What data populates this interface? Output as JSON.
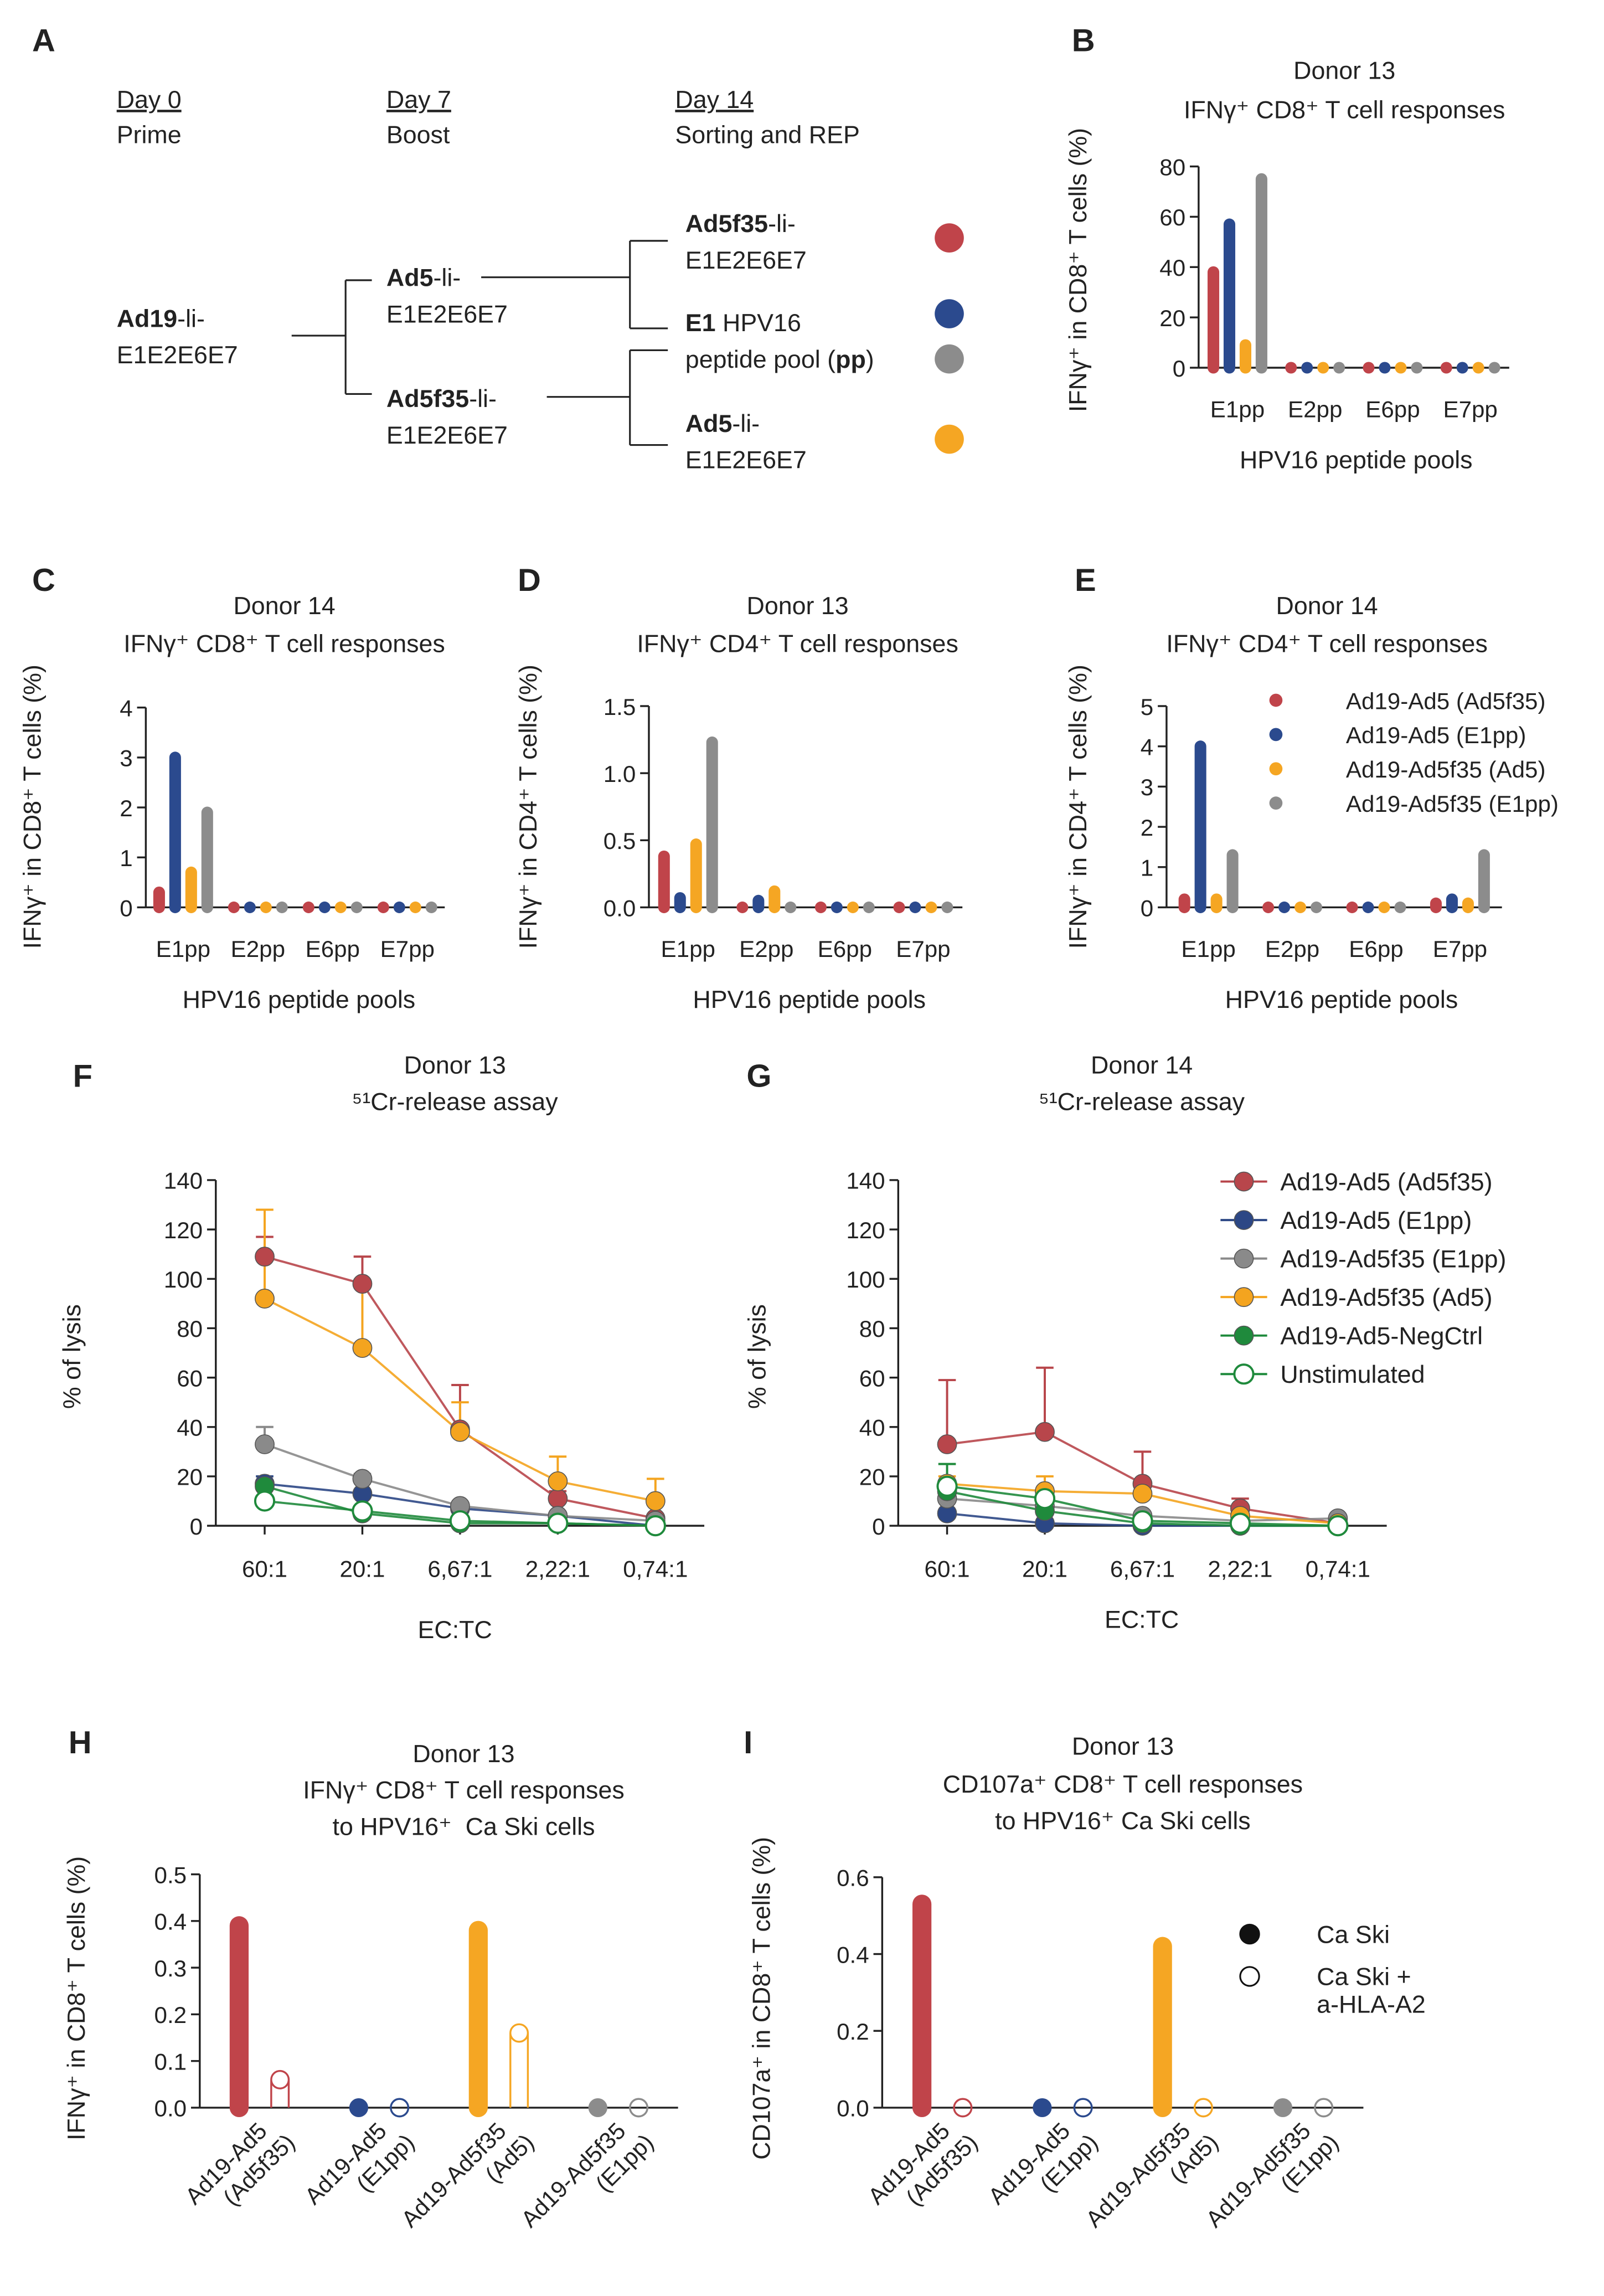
{
  "diagram": {
    "panel": "A",
    "timeline": [
      {
        "day": "Day 0",
        "step": "Prime"
      },
      {
        "day": "Day 7",
        "step": "Boost"
      },
      {
        "day": "Day 14",
        "step": "Sorting and REP"
      }
    ],
    "nodes": [
      {
        "lines": [
          [
            {
              "text": "Ad19",
              "bold": true
            },
            {
              "text": "-li-"
            }
          ],
          [
            {
              "text": "E1E2E6E7"
            }
          ]
        ]
      },
      {
        "lines": [
          [
            {
              "text": "Ad5",
              "bold": true
            },
            {
              "text": "-li-"
            }
          ],
          [
            {
              "text": "E1E2E6E7"
            }
          ]
        ]
      },
      {
        "lines": [
          [
            {
              "text": "Ad5f35",
              "bold": true
            },
            {
              "text": "-li-"
            }
          ],
          [
            {
              "text": "E1E2E6E7"
            }
          ]
        ]
      },
      {
        "lines": [
          [
            {
              "text": "Ad5f35",
              "bold": true
            },
            {
              "text": "-li-"
            }
          ],
          [
            {
              "text": "E1E2E6E7"
            }
          ]
        ]
      },
      {
        "lines": [
          [
            {
              "text": "E1",
              "bold": true
            },
            {
              "text": " HPV16"
            }
          ],
          [
            {
              "text": "peptide pool ("
            },
            {
              "text": "pp",
              "bold": true
            },
            {
              "text": ")"
            }
          ]
        ]
      },
      {
        "lines": [
          [
            {
              "text": "Ad5",
              "bold": true
            },
            {
              "text": "-li-"
            }
          ],
          [
            {
              "text": "E1E2E6E7"
            }
          ]
        ]
      }
    ]
  },
  "chart_data": [
    {
      "panel": "B",
      "type": "lollipop",
      "title": [
        "Donor 13",
        "IFNγ⁺ CD8⁺ T cell responses"
      ],
      "x_label": "HPV16 peptide pools",
      "y_label": "IFNγ⁺ in CD8⁺ T cells (%)",
      "categories": [
        "E1pp",
        "E2pp",
        "E6pp",
        "E7pp"
      ],
      "ylim": [
        0,
        80
      ],
      "yticks": [
        0,
        20,
        40,
        60,
        80
      ],
      "series": [
        {
          "color": "#c0444a",
          "values": [
            38,
            0,
            0,
            0
          ]
        },
        {
          "color": "#2b4a8e",
          "values": [
            57,
            0,
            0,
            0
          ]
        },
        {
          "color": "#f5a623",
          "values": [
            9,
            0,
            0,
            0
          ]
        },
        {
          "color": "#8c8c8c",
          "values": [
            75,
            0,
            0,
            0
          ]
        }
      ]
    },
    {
      "panel": "C",
      "type": "lollipop",
      "title": [
        "Donor 14",
        "IFNγ⁺ CD8⁺ T cell responses"
      ],
      "x_label": "HPV16 peptide pools",
      "y_label": "IFNγ⁺ in CD8⁺ T cells (%)",
      "categories": [
        "E1pp",
        "E2pp",
        "E6pp",
        "E7pp"
      ],
      "ylim": [
        0,
        4
      ],
      "yticks": [
        0,
        1,
        2,
        3,
        4
      ],
      "series": [
        {
          "color": "#c0444a",
          "values": [
            0.3,
            0,
            0,
            0
          ]
        },
        {
          "color": "#2b4a8e",
          "values": [
            3.0,
            0,
            0,
            0
          ]
        },
        {
          "color": "#f5a623",
          "values": [
            0.7,
            0,
            0,
            0
          ]
        },
        {
          "color": "#8c8c8c",
          "values": [
            1.9,
            0,
            0,
            0
          ]
        }
      ]
    },
    {
      "panel": "D",
      "type": "lollipop",
      "title": [
        "Donor 13",
        "IFNγ⁺ CD4⁺ T cell responses"
      ],
      "x_label": "HPV16 peptide pools",
      "y_label": "IFNγ⁺ in CD4⁺ T cells (%)",
      "categories": [
        "E1pp",
        "E2pp",
        "E6pp",
        "E7pp"
      ],
      "ylim": [
        0,
        1.5
      ],
      "yticks": [
        {
          "value": 0,
          "label": "0.0"
        },
        0.5,
        {
          "value": 1,
          "label": "1.0"
        },
        1.5
      ],
      "series": [
        {
          "color": "#c0444a",
          "values": [
            0.38,
            0,
            0,
            0
          ]
        },
        {
          "color": "#2b4a8e",
          "values": [
            0.07,
            0.05,
            0,
            0
          ]
        },
        {
          "color": "#f5a623",
          "values": [
            0.47,
            0.12,
            0,
            0
          ]
        },
        {
          "color": "#8c8c8c",
          "values": [
            1.23,
            0,
            0,
            0
          ]
        }
      ]
    },
    {
      "panel": "E",
      "type": "lollipop",
      "title": [
        "Donor 14",
        "IFNγ⁺ CD4⁺ T cell responses"
      ],
      "x_label": "HPV16 peptide pools",
      "y_label": "IFNγ⁺ in CD4⁺ T cells (%)",
      "categories": [
        "E1pp",
        "E2pp",
        "E6pp",
        "E7pp"
      ],
      "ylim": [
        0,
        5
      ],
      "yticks": [
        0,
        1,
        2,
        3,
        4,
        5
      ],
      "legend": "top-right",
      "series": [
        {
          "name": "Ad19-Ad5 (Ad5f35)",
          "color": "#c0444a",
          "values": [
            0.2,
            0,
            0,
            0.1
          ]
        },
        {
          "name": "Ad19-Ad5 (E1pp)",
          "color": "#2b4a8e",
          "values": [
            4.0,
            0,
            0,
            0.2
          ]
        },
        {
          "name": "Ad19-Ad5f35 (Ad5)",
          "color": "#f5a623",
          "values": [
            0.2,
            0,
            0,
            0.1
          ]
        },
        {
          "name": "Ad19-Ad5f35 (E1pp)",
          "color": "#8c8c8c",
          "values": [
            1.3,
            0,
            0,
            1.3
          ]
        }
      ]
    },
    {
      "panel": "F",
      "type": "line",
      "title": [
        "Donor 13",
        "⁵¹Cr-release assay"
      ],
      "x_label": "EC:TC",
      "y_label": "% of lysis",
      "categories": [
        "60:1",
        "20:1",
        "6,67:1",
        "2,22:1",
        "0,74:1"
      ],
      "ylim": [
        0,
        140
      ],
      "yticks": [
        0,
        20,
        40,
        60,
        80,
        100,
        120,
        140
      ],
      "series": [
        {
          "color": "#b8464b",
          "values": [
            109,
            98,
            39,
            11,
            3
          ],
          "errors": [
            8,
            11,
            18,
            3,
            null
          ]
        },
        {
          "color": "#2c4785",
          "values": [
            17,
            13,
            7,
            4,
            0
          ],
          "errors": [
            3,
            null,
            null,
            null,
            null
          ]
        },
        {
          "color": "#8a8a8a",
          "values": [
            33,
            19,
            8,
            4,
            2
          ],
          "errors": [
            7,
            2,
            1,
            null,
            null
          ]
        },
        {
          "color": "#f4a41f",
          "values": [
            92,
            72,
            38,
            18,
            10
          ],
          "errors": [
            36,
            26,
            12,
            10,
            9
          ]
        },
        {
          "color": "#1f8a3c",
          "values": [
            16,
            5,
            1,
            1,
            0
          ],
          "errors": [
            null,
            null,
            null,
            null,
            null
          ]
        },
        {
          "color": "#1f8a3c",
          "marker": "open",
          "values": [
            10,
            6,
            2,
            1,
            0
          ],
          "errors": [
            null,
            null,
            null,
            null,
            null
          ]
        }
      ]
    },
    {
      "panel": "G",
      "type": "line",
      "title": [
        "Donor 14",
        "⁵¹Cr-release assay"
      ],
      "x_label": "EC:TC",
      "y_label": "% of lysis",
      "categories": [
        "60:1",
        "20:1",
        "6,67:1",
        "2,22:1",
        "0,74:1"
      ],
      "ylim": [
        0,
        140
      ],
      "yticks": [
        0,
        20,
        40,
        60,
        80,
        100,
        120,
        140
      ],
      "legend": "top-right",
      "series": [
        {
          "name": "Ad19-Ad5 (Ad5f35)",
          "color": "#b8464b",
          "values": [
            33,
            38,
            17,
            7,
            1
          ],
          "errors": [
            26,
            26,
            13,
            4,
            null
          ]
        },
        {
          "name": "Ad19-Ad5 (E1pp)",
          "color": "#2c4785",
          "values": [
            5,
            1,
            0,
            0,
            0
          ],
          "errors": [
            null,
            null,
            null,
            null,
            null
          ]
        },
        {
          "name": "Ad19-Ad5f35 (E1pp)",
          "color": "#8a8a8a",
          "values": [
            11,
            8,
            4,
            2,
            3
          ],
          "errors": [
            2,
            null,
            null,
            null,
            null
          ]
        },
        {
          "name": "Ad19-Ad5f35 (Ad5)",
          "color": "#f4a41f",
          "values": [
            17,
            14,
            13,
            4,
            1
          ],
          "errors": [
            3,
            6,
            null,
            null,
            null
          ]
        },
        {
          "name": "Ad19-Ad5-NegCtrl",
          "color": "#1f8a3c",
          "values": [
            14,
            6,
            1,
            0,
            0
          ],
          "errors": [
            11,
            null,
            null,
            null,
            null
          ]
        },
        {
          "name": "Unstimulated",
          "color": "#1f8a3c",
          "marker": "open",
          "values": [
            16,
            11,
            2,
            1,
            0
          ],
          "errors": [
            null,
            null,
            null,
            null,
            null
          ]
        }
      ]
    },
    {
      "panel": "H",
      "type": "bar",
      "title": [
        "Donor 13",
        "IFNγ⁺ CD8⁺ T cell responses",
        "to HPV16⁺  Ca Ski cells"
      ],
      "y_label": "IFNγ⁺ in CD8⁺ T cells (%)",
      "categories": [
        [
          "Ad19-Ad5",
          "(Ad5f35)"
        ],
        [
          "Ad19-Ad5",
          "(E1pp)"
        ],
        [
          "Ad19-Ad5f35",
          "(Ad5)"
        ],
        [
          "Ad19-Ad5f35",
          "(E1pp)"
        ]
      ],
      "ylim": [
        0,
        0.5
      ],
      "yticks": [
        {
          "value": 0,
          "label": "0.0"
        },
        0.1,
        0.2,
        0.3,
        0.4,
        0.5
      ],
      "series": [
        {
          "fill": "solid",
          "colors": [
            "#c0444a",
            "#2b4a8e",
            "#f5a623",
            "#8c8c8c"
          ],
          "values": [
            0.39,
            0,
            0.38,
            0
          ]
        },
        {
          "fill": "open",
          "colors": [
            "#c0444a",
            "#2b4a8e",
            "#f5a623",
            "#8c8c8c"
          ],
          "values": [
            0.06,
            0,
            0.16,
            0
          ]
        }
      ]
    },
    {
      "panel": "I",
      "type": "bar",
      "title": [
        "Donor 13",
        "CD107a⁺ CD8⁺ T cell responses",
        "to HPV16⁺ Ca Ski cells"
      ],
      "y_label": "CD107a⁺ in CD8⁺ T cells (%)",
      "categories": [
        [
          "Ad19-Ad5",
          "(Ad5f35)"
        ],
        [
          "Ad19-Ad5",
          "(E1pp)"
        ],
        [
          "Ad19-Ad5f35",
          "(Ad5)"
        ],
        [
          "Ad19-Ad5f35",
          "(E1pp)"
        ]
      ],
      "ylim": [
        0,
        0.6
      ],
      "yticks": [
        {
          "value": 0,
          "label": "0.0"
        },
        0.2,
        0.4,
        0.6
      ],
      "legend": "top-right",
      "series": [
        {
          "name": [
            "Ca Ski"
          ],
          "fill": "solid",
          "colors": [
            "#c0444a",
            "#2b4a8e",
            "#f5a623",
            "#8c8c8c"
          ],
          "values": [
            0.53,
            0,
            0.42,
            0
          ]
        },
        {
          "name": [
            "Ca Ski +",
            "a-HLA-A2"
          ],
          "fill": "open",
          "colors": [
            "#c0444a",
            "#2b4a8e",
            "#f5a623",
            "#8c8c8c"
          ],
          "values": [
            0,
            0,
            0,
            0
          ]
        }
      ]
    }
  ]
}
